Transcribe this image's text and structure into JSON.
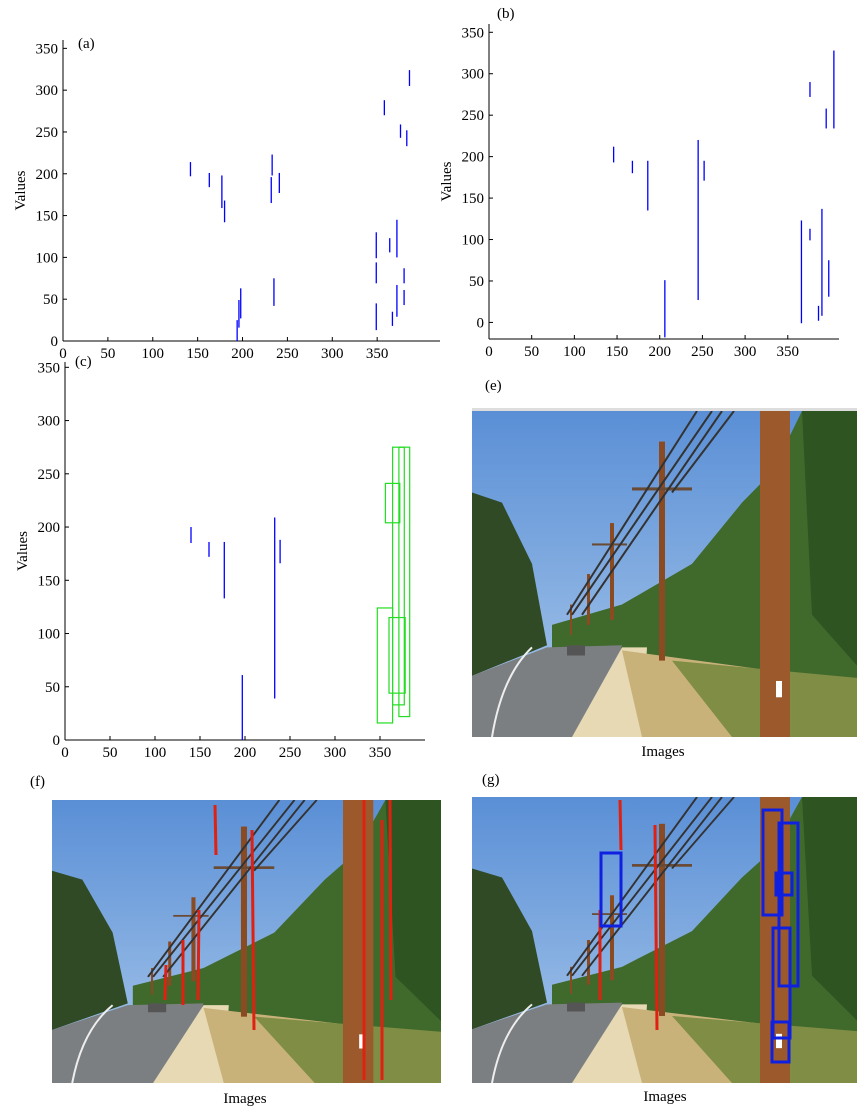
{
  "chart_data": [
    {
      "type": "segment",
      "label": "(a)",
      "ylabel": "Values",
      "xlim": [
        0,
        420
      ],
      "ylim": [
        0,
        360
      ],
      "xticks": [
        0,
        50,
        100,
        150,
        200,
        250,
        300,
        350
      ],
      "yticks": [
        0,
        50,
        100,
        150,
        200,
        250,
        300,
        350
      ],
      "series": [
        {
          "color": "#0000ff",
          "x": [
            142,
            163,
            177,
            180,
            233,
            232,
            241,
            235,
            194,
            196,
            198,
            349,
            349,
            349,
            358,
            364,
            367,
            372,
            372,
            376,
            380,
            380,
            383,
            386
          ],
          "low": [
            197,
            184,
            159,
            142,
            198,
            165,
            177,
            42,
            0,
            16,
            27,
            99,
            69,
            13,
            270,
            106,
            18,
            100,
            29,
            243,
            69,
            43,
            233,
            305
          ],
          "high": [
            214,
            201,
            198,
            168,
            223,
            196,
            201,
            75,
            25,
            49,
            63,
            130,
            94,
            45,
            288,
            123,
            35,
            145,
            67,
            259,
            87,
            61,
            252,
            324
          ]
        }
      ]
    },
    {
      "type": "segment",
      "label": "(b)",
      "ylabel": "Values",
      "xlim": [
        0,
        410
      ],
      "ylim": [
        -20,
        360
      ],
      "xticks": [
        0,
        50,
        100,
        150,
        200,
        250,
        300,
        350
      ],
      "yticks": [
        0,
        50,
        100,
        150,
        200,
        250,
        300,
        350
      ],
      "series": [
        {
          "color": "#0000ff",
          "x": [
            146,
            168,
            186,
            206,
            245,
            252,
            366,
            376,
            386,
            390,
            395,
            398,
            404,
            376
          ],
          "low": [
            193,
            180,
            135,
            -18,
            27,
            171,
            -1,
            99,
            2,
            8,
            234,
            31,
            234,
            272
          ],
          "high": [
            212,
            195,
            195,
            51,
            220,
            195,
            123,
            113,
            20,
            137,
            258,
            75,
            328,
            290
          ]
        }
      ]
    },
    {
      "type": "segment",
      "label": "(c)",
      "ylabel": "Values",
      "xlim": [
        0,
        400
      ],
      "ylim": [
        0,
        355
      ],
      "xticks": [
        0,
        50,
        100,
        150,
        200,
        250,
        300,
        350
      ],
      "yticks": [
        0,
        50,
        100,
        150,
        200,
        250,
        300,
        350
      ],
      "series": [
        {
          "color": "#0000ff",
          "x": [
            140,
            160,
            177,
            233,
            239,
            197
          ],
          "low": [
            185,
            172,
            133,
            39,
            166,
            0
          ],
          "high": [
            200,
            186,
            186,
            209,
            188,
            61
          ]
        }
      ],
      "boxes": {
        "color": "#22dd22",
        "x0": [
          347,
          356,
          364,
          371,
          360
        ],
        "x1": [
          364,
          372,
          377,
          383,
          378
        ],
        "y0": [
          16,
          204,
          33,
          22,
          44
        ],
        "y1": [
          124,
          241,
          275,
          275,
          115
        ]
      }
    }
  ],
  "panels": [
    {
      "label": "(e)",
      "caption": "Images"
    },
    {
      "label": "(f)",
      "caption": "Images"
    },
    {
      "label": "(g)",
      "caption": "Images"
    }
  ]
}
